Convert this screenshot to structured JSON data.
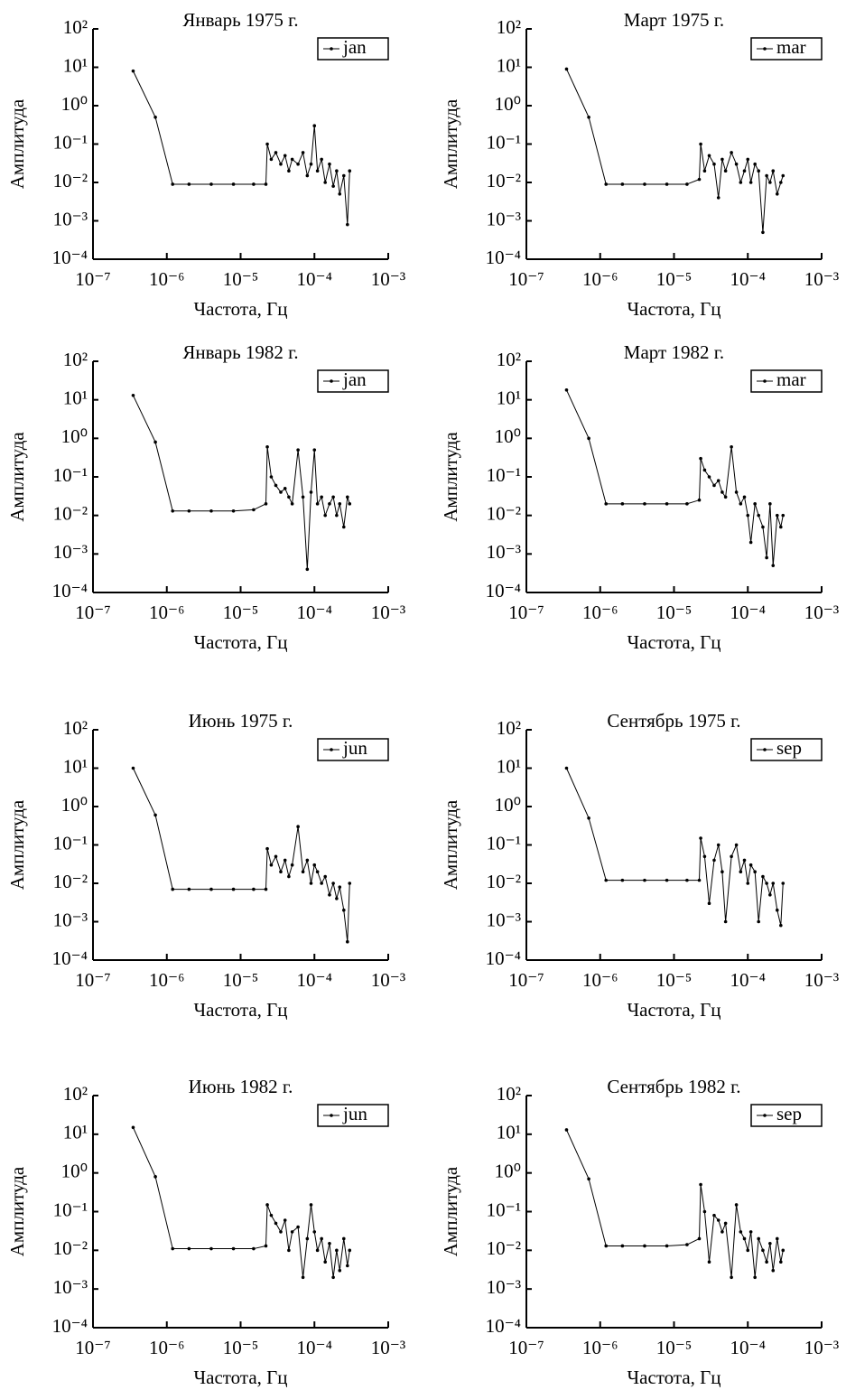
{
  "chart_data": [
    {
      "type": "line",
      "title": "Январь 1975 г.",
      "x_label": "Частота, Гц",
      "y_label": "Амплитуда",
      "xscale": "log",
      "yscale": "log",
      "xlim": [
        1e-07,
        0.001
      ],
      "ylim": [
        0.0001,
        100
      ],
      "xticks": [
        {
          "value": 1e-07,
          "label": "10⁻⁷"
        },
        {
          "value": 1e-06,
          "label": "10⁻⁶"
        },
        {
          "value": 1e-05,
          "label": "10⁻⁵"
        },
        {
          "value": 0.0001,
          "label": "10⁻⁴"
        },
        {
          "value": 0.001,
          "label": "10⁻³"
        }
      ],
      "yticks": [
        {
          "value": 0.0001,
          "label": "10⁻⁴"
        },
        {
          "value": 0.001,
          "label": "10⁻³"
        },
        {
          "value": 0.01,
          "label": "10⁻²"
        },
        {
          "value": 0.1,
          "label": "10⁻¹"
        },
        {
          "value": 1,
          "label": "10⁰"
        },
        {
          "value": 10,
          "label": "10¹"
        },
        {
          "value": 100,
          "label": "10²"
        }
      ],
      "x": [
        3.5e-07,
        7e-07,
        1.2e-06,
        2e-06,
        4e-06,
        8e-06,
        1.5e-05,
        2.2e-05,
        2.3e-05,
        2.6e-05,
        3e-05,
        3.5e-05,
        4e-05,
        4.5e-05,
        5e-05,
        6e-05,
        7e-05,
        8e-05,
        9e-05,
        0.0001,
        0.00011,
        0.000125,
        0.00014,
        0.00016,
        0.00018,
        0.0002,
        0.00022,
        0.00025,
        0.00028,
        0.0003
      ],
      "series": [
        {
          "name": "jan",
          "color": "#000000",
          "values": [
            8,
            0.5,
            0.009,
            0.009,
            0.009,
            0.009,
            0.009,
            0.009,
            0.1,
            0.04,
            0.06,
            0.03,
            0.05,
            0.02,
            0.04,
            0.03,
            0.06,
            0.015,
            0.03,
            0.3,
            0.02,
            0.04,
            0.01,
            0.03,
            0.008,
            0.02,
            0.005,
            0.015,
            0.0008,
            0.02
          ]
        }
      ]
    },
    {
      "type": "line",
      "title": "Март 1975 г.",
      "x_label": "Частота, Гц",
      "y_label": "Амплитуда",
      "xscale": "log",
      "yscale": "log",
      "xlim": [
        1e-07,
        0.001
      ],
      "ylim": [
        0.0001,
        100
      ],
      "xticks": [
        {
          "value": 1e-07,
          "label": "10⁻⁷"
        },
        {
          "value": 1e-06,
          "label": "10⁻⁶"
        },
        {
          "value": 1e-05,
          "label": "10⁻⁵"
        },
        {
          "value": 0.0001,
          "label": "10⁻⁴"
        },
        {
          "value": 0.001,
          "label": "10⁻³"
        }
      ],
      "yticks": [
        {
          "value": 0.0001,
          "label": "10⁻⁴"
        },
        {
          "value": 0.001,
          "label": "10⁻³"
        },
        {
          "value": 0.01,
          "label": "10⁻²"
        },
        {
          "value": 0.1,
          "label": "10⁻¹"
        },
        {
          "value": 1,
          "label": "10⁰"
        },
        {
          "value": 10,
          "label": "10¹"
        },
        {
          "value": 100,
          "label": "10²"
        }
      ],
      "x": [
        3.5e-07,
        7e-07,
        1.2e-06,
        2e-06,
        4e-06,
        8e-06,
        1.5e-05,
        2.2e-05,
        2.3e-05,
        2.6e-05,
        3e-05,
        3.5e-05,
        4e-05,
        4.5e-05,
        5e-05,
        6e-05,
        7e-05,
        8e-05,
        9e-05,
        0.0001,
        0.00011,
        0.000125,
        0.00014,
        0.00016,
        0.00018,
        0.0002,
        0.00022,
        0.00025,
        0.00028,
        0.0003
      ],
      "series": [
        {
          "name": "mar",
          "color": "#000000",
          "values": [
            9,
            0.5,
            0.009,
            0.009,
            0.009,
            0.009,
            0.009,
            0.012,
            0.1,
            0.02,
            0.05,
            0.03,
            0.004,
            0.04,
            0.02,
            0.06,
            0.03,
            0.01,
            0.02,
            0.04,
            0.01,
            0.03,
            0.02,
            0.0005,
            0.015,
            0.01,
            0.02,
            0.005,
            0.01,
            0.015
          ]
        }
      ]
    },
    {
      "type": "line",
      "title": "Январь 1982 г.",
      "x_label": "Частота, Гц",
      "y_label": "Амплитуда",
      "xscale": "log",
      "yscale": "log",
      "xlim": [
        1e-07,
        0.001
      ],
      "ylim": [
        0.0001,
        100
      ],
      "xticks": [
        {
          "value": 1e-07,
          "label": "10⁻⁷"
        },
        {
          "value": 1e-06,
          "label": "10⁻⁶"
        },
        {
          "value": 1e-05,
          "label": "10⁻⁵"
        },
        {
          "value": 0.0001,
          "label": "10⁻⁴"
        },
        {
          "value": 0.001,
          "label": "10⁻³"
        }
      ],
      "yticks": [
        {
          "value": 0.0001,
          "label": "10⁻⁴"
        },
        {
          "value": 0.001,
          "label": "10⁻³"
        },
        {
          "value": 0.01,
          "label": "10⁻²"
        },
        {
          "value": 0.1,
          "label": "10⁻¹"
        },
        {
          "value": 1,
          "label": "10⁰"
        },
        {
          "value": 10,
          "label": "10¹"
        },
        {
          "value": 100,
          "label": "10²"
        }
      ],
      "x": [
        3.5e-07,
        7e-07,
        1.2e-06,
        2e-06,
        4e-06,
        8e-06,
        1.5e-05,
        2.2e-05,
        2.3e-05,
        2.6e-05,
        3e-05,
        3.5e-05,
        4e-05,
        4.5e-05,
        5e-05,
        6e-05,
        7e-05,
        8e-05,
        9e-05,
        0.0001,
        0.00011,
        0.000125,
        0.00014,
        0.00016,
        0.00018,
        0.0002,
        0.00022,
        0.00025,
        0.00028,
        0.0003
      ],
      "series": [
        {
          "name": "jan",
          "color": "#000000",
          "values": [
            13,
            0.8,
            0.013,
            0.013,
            0.013,
            0.013,
            0.014,
            0.02,
            0.6,
            0.1,
            0.06,
            0.04,
            0.05,
            0.03,
            0.02,
            0.5,
            0.03,
            0.0004,
            0.04,
            0.5,
            0.02,
            0.03,
            0.01,
            0.02,
            0.03,
            0.01,
            0.02,
            0.005,
            0.03,
            0.02
          ]
        }
      ]
    },
    {
      "type": "line",
      "title": "Март 1982 г.",
      "x_label": "Частота, Гц",
      "y_label": "Амплитуда",
      "xscale": "log",
      "yscale": "log",
      "xlim": [
        1e-07,
        0.001
      ],
      "ylim": [
        0.0001,
        100
      ],
      "xticks": [
        {
          "value": 1e-07,
          "label": "10⁻⁷"
        },
        {
          "value": 1e-06,
          "label": "10⁻⁶"
        },
        {
          "value": 1e-05,
          "label": "10⁻⁵"
        },
        {
          "value": 0.0001,
          "label": "10⁻⁴"
        },
        {
          "value": 0.001,
          "label": "10⁻³"
        }
      ],
      "yticks": [
        {
          "value": 0.0001,
          "label": "10⁻⁴"
        },
        {
          "value": 0.001,
          "label": "10⁻³"
        },
        {
          "value": 0.01,
          "label": "10⁻²"
        },
        {
          "value": 0.1,
          "label": "10⁻¹"
        },
        {
          "value": 1,
          "label": "10⁰"
        },
        {
          "value": 10,
          "label": "10¹"
        },
        {
          "value": 100,
          "label": "10²"
        }
      ],
      "x": [
        3.5e-07,
        7e-07,
        1.2e-06,
        2e-06,
        4e-06,
        8e-06,
        1.5e-05,
        2.2e-05,
        2.3e-05,
        2.6e-05,
        3e-05,
        3.5e-05,
        4e-05,
        4.5e-05,
        5e-05,
        6e-05,
        7e-05,
        8e-05,
        9e-05,
        0.0001,
        0.00011,
        0.000125,
        0.00014,
        0.00016,
        0.00018,
        0.0002,
        0.00022,
        0.00025,
        0.00028,
        0.0003
      ],
      "series": [
        {
          "name": "mar",
          "color": "#000000",
          "values": [
            18,
            1,
            0.02,
            0.02,
            0.02,
            0.02,
            0.02,
            0.025,
            0.3,
            0.15,
            0.1,
            0.06,
            0.08,
            0.04,
            0.03,
            0.6,
            0.04,
            0.02,
            0.03,
            0.01,
            0.002,
            0.02,
            0.01,
            0.005,
            0.0008,
            0.02,
            0.0005,
            0.01,
            0.005,
            0.01
          ]
        }
      ]
    },
    {
      "type": "line",
      "title": "Июнь 1975 г.",
      "x_label": "Частота, Гц",
      "y_label": "Амплитуда",
      "xscale": "log",
      "yscale": "log",
      "xlim": [
        1e-07,
        0.001
      ],
      "ylim": [
        0.0001,
        100
      ],
      "xticks": [
        {
          "value": 1e-07,
          "label": "10⁻⁷"
        },
        {
          "value": 1e-06,
          "label": "10⁻⁶"
        },
        {
          "value": 1e-05,
          "label": "10⁻⁵"
        },
        {
          "value": 0.0001,
          "label": "10⁻⁴"
        },
        {
          "value": 0.001,
          "label": "10⁻³"
        }
      ],
      "yticks": [
        {
          "value": 0.0001,
          "label": "10⁻⁴"
        },
        {
          "value": 0.001,
          "label": "10⁻³"
        },
        {
          "value": 0.01,
          "label": "10⁻²"
        },
        {
          "value": 0.1,
          "label": "10⁻¹"
        },
        {
          "value": 1,
          "label": "10⁰"
        },
        {
          "value": 10,
          "label": "10¹"
        },
        {
          "value": 100,
          "label": "10²"
        }
      ],
      "x": [
        3.5e-07,
        7e-07,
        1.2e-06,
        2e-06,
        4e-06,
        8e-06,
        1.5e-05,
        2.2e-05,
        2.3e-05,
        2.6e-05,
        3e-05,
        3.5e-05,
        4e-05,
        4.5e-05,
        5e-05,
        6e-05,
        7e-05,
        8e-05,
        9e-05,
        0.0001,
        0.00011,
        0.000125,
        0.00014,
        0.00016,
        0.00018,
        0.0002,
        0.00022,
        0.00025,
        0.00028,
        0.0003
      ],
      "series": [
        {
          "name": "jun",
          "color": "#000000",
          "values": [
            10,
            0.6,
            0.007,
            0.007,
            0.007,
            0.007,
            0.007,
            0.007,
            0.08,
            0.03,
            0.05,
            0.02,
            0.04,
            0.015,
            0.03,
            0.3,
            0.02,
            0.04,
            0.01,
            0.03,
            0.02,
            0.01,
            0.015,
            0.005,
            0.01,
            0.004,
            0.008,
            0.002,
            0.0003,
            0.01
          ]
        }
      ]
    },
    {
      "type": "line",
      "title": "Сентябрь 1975 г.",
      "x_label": "Частота, Гц",
      "y_label": "Амплитуда",
      "xscale": "log",
      "yscale": "log",
      "xlim": [
        1e-07,
        0.001
      ],
      "ylim": [
        0.0001,
        100
      ],
      "xticks": [
        {
          "value": 1e-07,
          "label": "10⁻⁷"
        },
        {
          "value": 1e-06,
          "label": "10⁻⁶"
        },
        {
          "value": 1e-05,
          "label": "10⁻⁵"
        },
        {
          "value": 0.0001,
          "label": "10⁻⁴"
        },
        {
          "value": 0.001,
          "label": "10⁻³"
        }
      ],
      "yticks": [
        {
          "value": 0.0001,
          "label": "10⁻⁴"
        },
        {
          "value": 0.001,
          "label": "10⁻³"
        },
        {
          "value": 0.01,
          "label": "10⁻²"
        },
        {
          "value": 0.1,
          "label": "10⁻¹"
        },
        {
          "value": 1,
          "label": "10⁰"
        },
        {
          "value": 10,
          "label": "10¹"
        },
        {
          "value": 100,
          "label": "10²"
        }
      ],
      "x": [
        3.5e-07,
        7e-07,
        1.2e-06,
        2e-06,
        4e-06,
        8e-06,
        1.5e-05,
        2.2e-05,
        2.3e-05,
        2.6e-05,
        3e-05,
        3.5e-05,
        4e-05,
        4.5e-05,
        5e-05,
        6e-05,
        7e-05,
        8e-05,
        9e-05,
        0.0001,
        0.00011,
        0.000125,
        0.00014,
        0.00016,
        0.00018,
        0.0002,
        0.00022,
        0.00025,
        0.00028,
        0.0003
      ],
      "series": [
        {
          "name": "sep",
          "color": "#000000",
          "values": [
            10,
            0.5,
            0.012,
            0.012,
            0.012,
            0.012,
            0.012,
            0.012,
            0.15,
            0.05,
            0.003,
            0.04,
            0.1,
            0.02,
            0.001,
            0.05,
            0.1,
            0.02,
            0.04,
            0.01,
            0.03,
            0.02,
            0.001,
            0.015,
            0.01,
            0.005,
            0.01,
            0.002,
            0.0008,
            0.01
          ]
        }
      ]
    },
    {
      "type": "line",
      "title": "Июнь 1982 г.",
      "x_label": "Частота, Гц",
      "y_label": "Амплитуда",
      "xscale": "log",
      "yscale": "log",
      "xlim": [
        1e-07,
        0.001
      ],
      "ylim": [
        0.0001,
        100
      ],
      "xticks": [
        {
          "value": 1e-07,
          "label": "10⁻⁷"
        },
        {
          "value": 1e-06,
          "label": "10⁻⁶"
        },
        {
          "value": 1e-05,
          "label": "10⁻⁵"
        },
        {
          "value": 0.0001,
          "label": "10⁻⁴"
        },
        {
          "value": 0.001,
          "label": "10⁻³"
        }
      ],
      "yticks": [
        {
          "value": 0.0001,
          "label": "10⁻⁴"
        },
        {
          "value": 0.001,
          "label": "10⁻³"
        },
        {
          "value": 0.01,
          "label": "10⁻²"
        },
        {
          "value": 0.1,
          "label": "10⁻¹"
        },
        {
          "value": 1,
          "label": "10⁰"
        },
        {
          "value": 10,
          "label": "10¹"
        },
        {
          "value": 100,
          "label": "10²"
        }
      ],
      "x": [
        3.5e-07,
        7e-07,
        1.2e-06,
        2e-06,
        4e-06,
        8e-06,
        1.5e-05,
        2.2e-05,
        2.3e-05,
        2.6e-05,
        3e-05,
        3.5e-05,
        4e-05,
        4.5e-05,
        5e-05,
        6e-05,
        7e-05,
        8e-05,
        9e-05,
        0.0001,
        0.00011,
        0.000125,
        0.00014,
        0.00016,
        0.00018,
        0.0002,
        0.00022,
        0.00025,
        0.00028,
        0.0003
      ],
      "series": [
        {
          "name": "jun",
          "color": "#000000",
          "values": [
            15,
            0.8,
            0.011,
            0.011,
            0.011,
            0.011,
            0.011,
            0.013,
            0.15,
            0.08,
            0.05,
            0.03,
            0.06,
            0.01,
            0.03,
            0.04,
            0.002,
            0.02,
            0.15,
            0.03,
            0.01,
            0.02,
            0.005,
            0.015,
            0.002,
            0.01,
            0.003,
            0.02,
            0.004,
            0.01
          ]
        }
      ]
    },
    {
      "type": "line",
      "title": "Сентябрь 1982 г.",
      "x_label": "Частота, Гц",
      "y_label": "Амплитуда",
      "xscale": "log",
      "yscale": "log",
      "xlim": [
        1e-07,
        0.001
      ],
      "ylim": [
        0.0001,
        100
      ],
      "xticks": [
        {
          "value": 1e-07,
          "label": "10⁻⁷"
        },
        {
          "value": 1e-06,
          "label": "10⁻⁶"
        },
        {
          "value": 1e-05,
          "label": "10⁻⁵"
        },
        {
          "value": 0.0001,
          "label": "10⁻⁴"
        },
        {
          "value": 0.001,
          "label": "10⁻³"
        }
      ],
      "yticks": [
        {
          "value": 0.0001,
          "label": "10⁻⁴"
        },
        {
          "value": 0.001,
          "label": "10⁻³"
        },
        {
          "value": 0.01,
          "label": "10⁻²"
        },
        {
          "value": 0.1,
          "label": "10⁻¹"
        },
        {
          "value": 1,
          "label": "10⁰"
        },
        {
          "value": 10,
          "label": "10¹"
        },
        {
          "value": 100,
          "label": "10²"
        }
      ],
      "x": [
        3.5e-07,
        7e-07,
        1.2e-06,
        2e-06,
        4e-06,
        8e-06,
        1.5e-05,
        2.2e-05,
        2.3e-05,
        2.6e-05,
        3e-05,
        3.5e-05,
        4e-05,
        4.5e-05,
        5e-05,
        6e-05,
        7e-05,
        8e-05,
        9e-05,
        0.0001,
        0.00011,
        0.000125,
        0.00014,
        0.00016,
        0.00018,
        0.0002,
        0.00022,
        0.00025,
        0.00028,
        0.0003
      ],
      "series": [
        {
          "name": "sep",
          "color": "#000000",
          "values": [
            13,
            0.7,
            0.013,
            0.013,
            0.013,
            0.013,
            0.014,
            0.02,
            0.5,
            0.1,
            0.005,
            0.08,
            0.06,
            0.03,
            0.05,
            0.002,
            0.15,
            0.03,
            0.02,
            0.01,
            0.03,
            0.002,
            0.02,
            0.01,
            0.005,
            0.015,
            0.003,
            0.02,
            0.005,
            0.01
          ]
        }
      ]
    }
  ]
}
